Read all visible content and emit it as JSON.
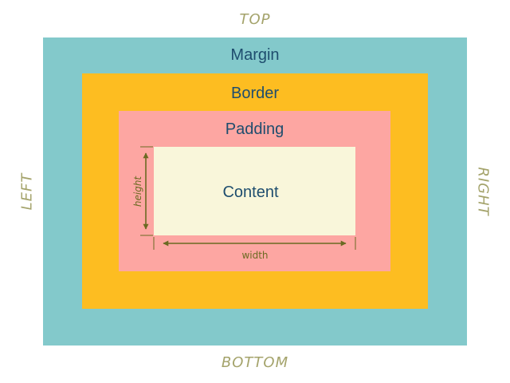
{
  "sides": {
    "top": "TOP",
    "bottom": "BOTTOM",
    "left": "LEFT",
    "right": "RIGHT"
  },
  "boxes": {
    "margin": "Margin",
    "border": "Border",
    "padding": "Padding",
    "content": "Content"
  },
  "dimensions": {
    "width": "width",
    "height": "height"
  },
  "colors": {
    "margin": "#83c9cb",
    "border": "#fdbd21",
    "padding": "#fda6a2",
    "content": "#f9f6da",
    "box_text": "#1e4d6e",
    "side_text": "#a4a36b",
    "dimension_line": "#6b6a22"
  }
}
